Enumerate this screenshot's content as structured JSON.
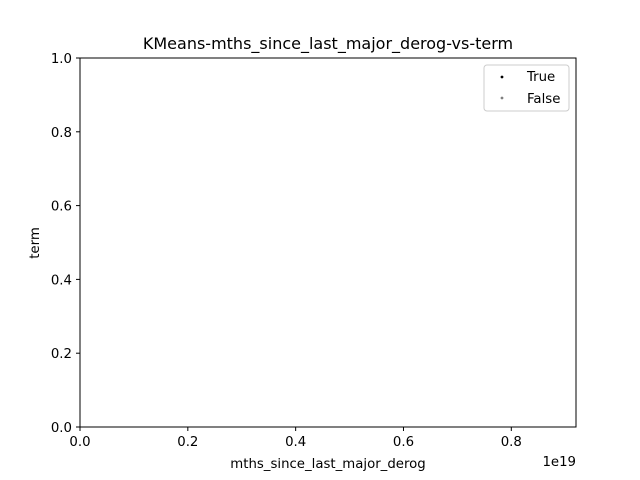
{
  "chart_data": {
    "type": "scatter",
    "title": "KMeans-mths_since_last_major_derog-vs-term",
    "xlabel": "mths_since_last_major_derog",
    "ylabel": "term",
    "x_offset_label": "1e19",
    "xlim": [
      0,
      0.92
    ],
    "ylim": [
      0,
      1.0
    ],
    "xticks": [
      "0.0",
      "0.2",
      "0.4",
      "0.6",
      "0.8"
    ],
    "xtick_values": [
      0.0,
      0.2,
      0.4,
      0.6,
      0.8
    ],
    "yticks": [
      "0.0",
      "0.2",
      "0.4",
      "0.6",
      "0.8",
      "1.0"
    ],
    "ytick_values": [
      0.0,
      0.2,
      0.4,
      0.6,
      0.8,
      1.0
    ],
    "grid": false,
    "legend_position": "upper-right",
    "series": [
      {
        "name": "True",
        "color": "#000000",
        "points": []
      },
      {
        "name": "False",
        "color": "#808080",
        "points": []
      }
    ]
  }
}
